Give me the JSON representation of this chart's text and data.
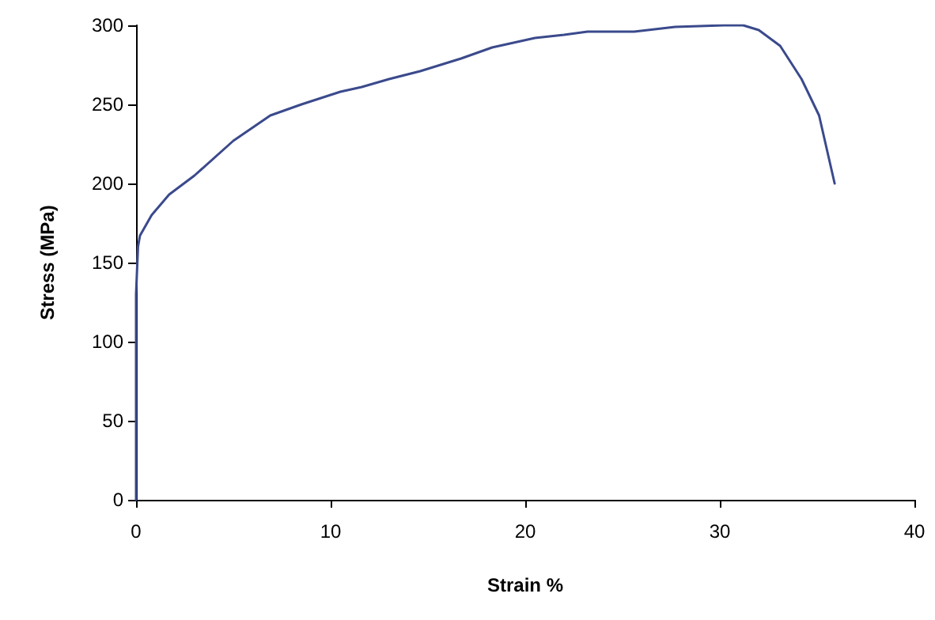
{
  "chart_data": {
    "type": "line",
    "xlabel": "Strain %",
    "ylabel": "Stress (MPa)",
    "xlim": [
      0,
      40
    ],
    "xticks": [
      0,
      10,
      20,
      30,
      40
    ],
    "ylim": [
      0,
      300
    ],
    "yticks": [
      0,
      50,
      100,
      150,
      200,
      250,
      300
    ],
    "grid": false,
    "marker": "none",
    "line_style": "solid",
    "series": [
      {
        "color": "#3b4a8c",
        "x": [
          0,
          0,
          0.1,
          0.2,
          0.8,
          1.7,
          3.0,
          5.0,
          6.9,
          8.5,
          10.5,
          11.6,
          13.0,
          14.6,
          16.7,
          18.3,
          20.5,
          22.0,
          23.2,
          25.6,
          27.7,
          30.2,
          31.2,
          32.0,
          33.1,
          34.2,
          35.1,
          35.9
        ],
        "values": [
          0,
          130,
          160,
          167,
          180,
          193,
          205,
          227,
          243,
          250,
          258,
          261,
          266,
          271,
          279,
          286,
          292,
          294,
          296,
          296,
          299,
          300,
          300,
          297,
          287,
          266,
          243,
          200
        ]
      }
    ]
  }
}
